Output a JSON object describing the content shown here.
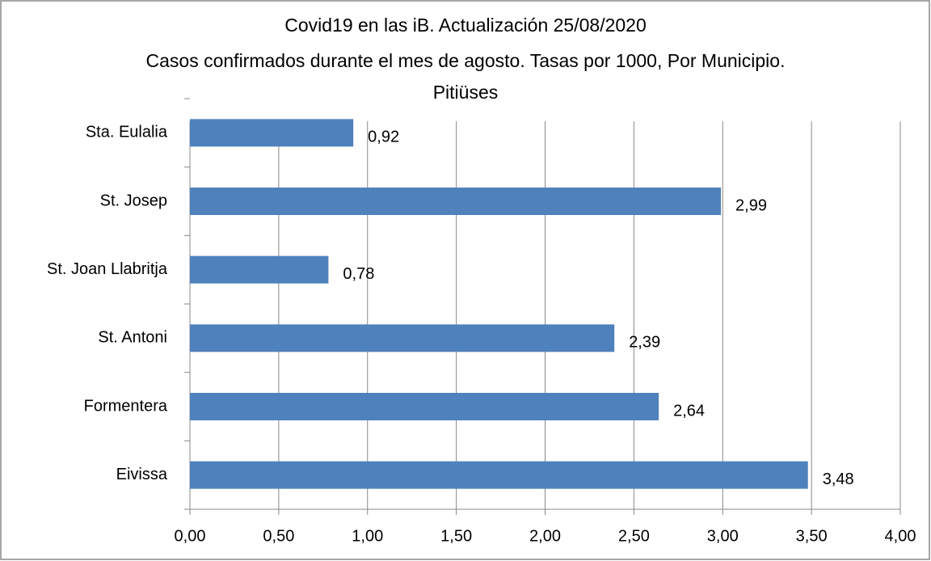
{
  "chart_data": {
    "type": "bar",
    "orientation": "horizontal",
    "title": "Covid19 en las iB. Actualización  25/08/2020",
    "subtitle": "Casos  confirmados durante el mes de agosto. Tasas por 1000,  Por Municipio.  Pitiüses",
    "categories": [
      "Sta. Eulalia",
      "St. Josep",
      "St. Joan Llabritja",
      "St. Antoni",
      "Formentera",
      "Eivissa"
    ],
    "values": [
      0.92,
      2.99,
      0.78,
      2.39,
      2.64,
      3.48
    ],
    "value_labels": [
      "0,92",
      "2,99",
      "0,78",
      "2,39",
      "2,64",
      "3,48"
    ],
    "color": "#4f81bd",
    "xlim": [
      0,
      4
    ],
    "xticks": [
      {
        "value": 0,
        "label": "0,00"
      },
      {
        "value": 0.5,
        "label": "0,50"
      },
      {
        "value": 1,
        "label": "1,00"
      },
      {
        "value": 1.5,
        "label": "1,50"
      },
      {
        "value": 2,
        "label": "2,00"
      },
      {
        "value": 2.5,
        "label": "2,50"
      },
      {
        "value": 3,
        "label": "3,00"
      },
      {
        "value": 3.5,
        "label": "3,50"
      },
      {
        "value": 4,
        "label": "4,00"
      }
    ],
    "grid": true
  }
}
